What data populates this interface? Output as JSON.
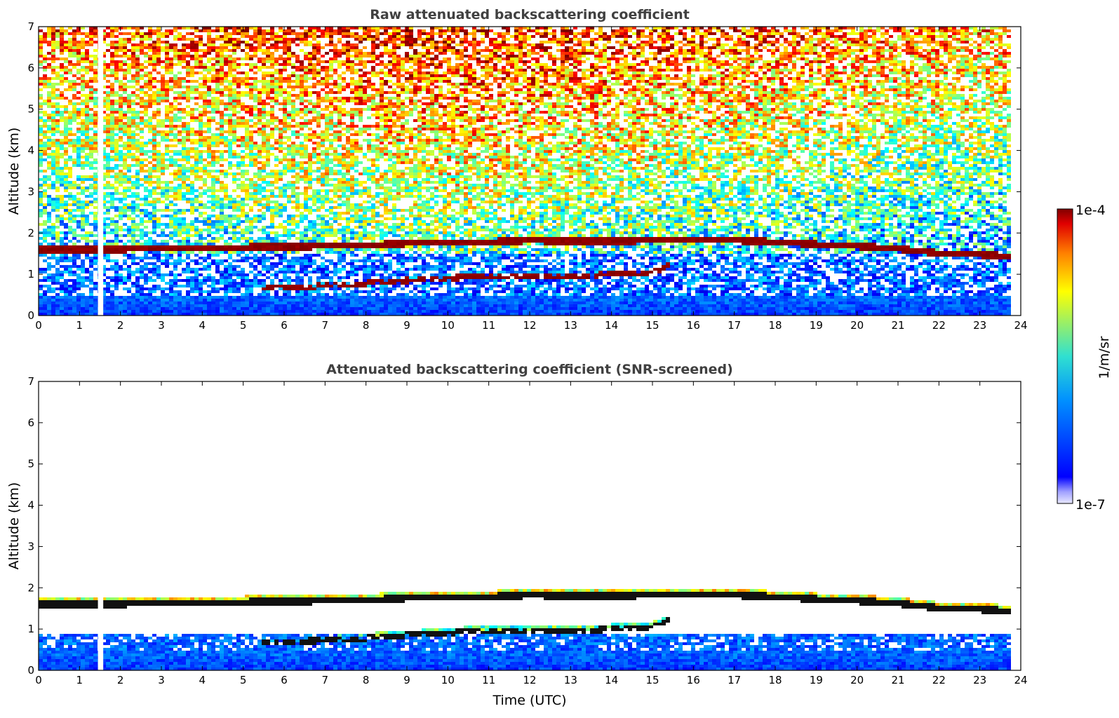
{
  "chart_data": [
    {
      "type": "heatmap",
      "title": "Raw attenuated backscattering coefficient",
      "xlabel": "",
      "ylabel": "Altitude (km)",
      "xlim": [
        0,
        24
      ],
      "ylim": [
        0,
        7
      ],
      "x_ticks": [
        "0",
        "1",
        "2",
        "3",
        "4",
        "5",
        "6",
        "7",
        "8",
        "9",
        "10",
        "11",
        "12",
        "13",
        "14",
        "15",
        "16",
        "17",
        "18",
        "19",
        "20",
        "21",
        "22",
        "23",
        "24"
      ],
      "y_ticks": [
        "0",
        "1",
        "2",
        "3",
        "4",
        "5",
        "6",
        "7"
      ],
      "data_gap_hours": [
        1.45,
        1.58
      ],
      "data_end_hour": 23.8,
      "boundary_layer_top_km": 0.5,
      "features": {
        "upper_cloud_layer": {
          "x": [
            0,
            1,
            2,
            3,
            4,
            5,
            6,
            7,
            8,
            9,
            10,
            11,
            12,
            13,
            14,
            15,
            16,
            17,
            18,
            19,
            20,
            21,
            22,
            23,
            23.8
          ],
          "y_km": [
            1.6,
            1.6,
            1.6,
            1.65,
            1.65,
            1.65,
            1.67,
            1.68,
            1.7,
            1.75,
            1.78,
            1.78,
            1.82,
            1.8,
            1.8,
            1.82,
            1.85,
            1.82,
            1.78,
            1.72,
            1.68,
            1.62,
            1.5,
            1.48,
            1.42
          ]
        },
        "lower_cloud_layer": {
          "x": [
            5.5,
            6,
            7,
            8,
            9,
            10,
            11,
            12,
            13,
            14,
            15,
            15.4
          ],
          "y_km": [
            0.65,
            0.7,
            0.72,
            0.78,
            0.85,
            0.9,
            0.98,
            0.95,
            0.95,
            1.0,
            1.05,
            1.2
          ]
        }
      }
    },
    {
      "type": "heatmap",
      "title": "Attenuated backscattering coefficient (SNR-screened)",
      "xlabel": "Time (UTC)",
      "ylabel": "Altitude (km)",
      "xlim": [
        0,
        24
      ],
      "ylim": [
        0,
        7
      ],
      "x_ticks": [
        "0",
        "1",
        "2",
        "3",
        "4",
        "5",
        "6",
        "7",
        "8",
        "9",
        "10",
        "11",
        "12",
        "13",
        "14",
        "15",
        "16",
        "17",
        "18",
        "19",
        "20",
        "21",
        "22",
        "23",
        "24"
      ],
      "y_ticks": [
        "0",
        "1",
        "2",
        "3",
        "4",
        "5",
        "6",
        "7"
      ],
      "data_gap_hours": [
        1.45,
        1.58
      ],
      "data_end_hour": 23.8
    }
  ],
  "colorbar": {
    "label": "1/m/sr",
    "max_label": "1e-4",
    "min_label": "1e-7",
    "scale": "log",
    "range": [
      1e-07,
      0.0001
    ],
    "colormap": "jet"
  }
}
